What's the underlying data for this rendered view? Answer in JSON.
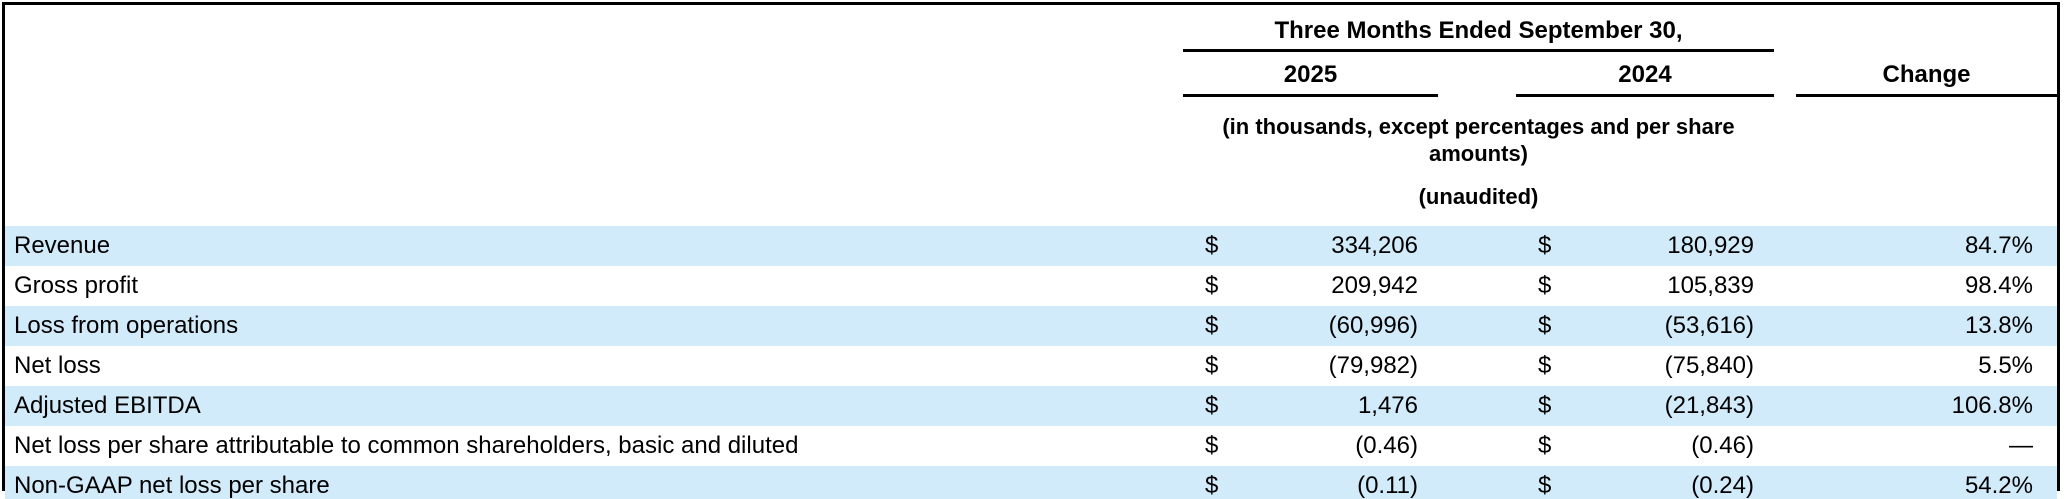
{
  "table": {
    "header": {
      "period_label": "Three Months Ended September 30,",
      "col_2025": "2025",
      "col_2024": "2024",
      "col_change": "Change",
      "note_line1": "(in thousands, except percentages and per share amounts)",
      "note_line2": "(unaudited)"
    },
    "currency_symbol": "$",
    "rows": [
      {
        "label": "Revenue",
        "v2025": "334,206",
        "v2024": "180,929",
        "change": "84.7%"
      },
      {
        "label": "Gross profit",
        "v2025": "209,942",
        "v2024": "105,839",
        "change": "98.4%"
      },
      {
        "label": "Loss from operations",
        "v2025": "(60,996)",
        "v2024": "(53,616)",
        "change": "13.8%"
      },
      {
        "label": "Net loss",
        "v2025": "(79,982)",
        "v2024": "(75,840)",
        "change": "5.5%"
      },
      {
        "label": "Adjusted EBITDA",
        "v2025": "1,476",
        "v2024": "(21,843)",
        "change": "106.8%"
      },
      {
        "label": "Net loss per share attributable to common shareholders, basic and diluted",
        "v2025": "(0.46)",
        "v2024": "(0.46)",
        "change": "—"
      },
      {
        "label": "Non-GAAP net loss per share",
        "v2025": "(0.11)",
        "v2024": "(0.24)",
        "change": "54.2%"
      }
    ],
    "colors": {
      "row_highlight": "#d2ebfa",
      "border": "#000000",
      "text": "#000000"
    }
  }
}
